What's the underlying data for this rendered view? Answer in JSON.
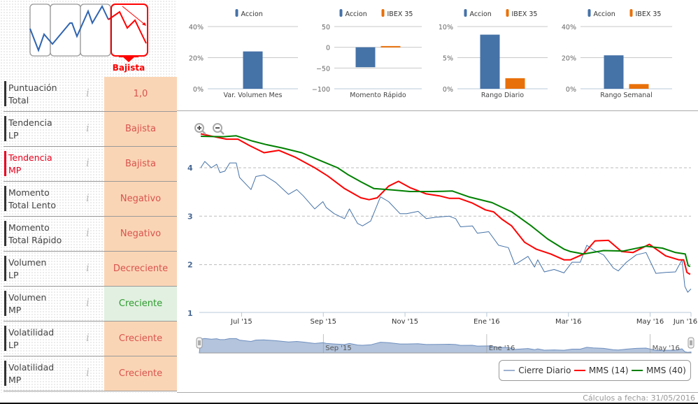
{
  "signal": {
    "label": "Bajista"
  },
  "rows": [
    {
      "line1": "Puntuación",
      "line2": "Total",
      "value": "1,0",
      "status": "neg",
      "highlight": false
    },
    {
      "line1": "Tendencia",
      "line2": "LP",
      "value": "Bajista",
      "status": "neg",
      "highlight": false
    },
    {
      "line1": "Tendencia",
      "line2": "MP",
      "value": "Bajista",
      "status": "neg",
      "highlight": true
    },
    {
      "line1": "Momento",
      "line2": "Total Lento",
      "value": "Negativo",
      "status": "neg",
      "highlight": false
    },
    {
      "line1": "Momento",
      "line2": "Total Rápido",
      "value": "Negativo",
      "status": "neg",
      "highlight": false
    },
    {
      "line1": "Volumen",
      "line2": "LP",
      "value": "Decreciente",
      "status": "neg",
      "highlight": false
    },
    {
      "line1": "Volumen",
      "line2": "MP",
      "value": "Creciente",
      "status": "pos",
      "highlight": false
    },
    {
      "line1": "Volatilidad",
      "line2": "LP",
      "value": "Creciente",
      "status": "neg",
      "highlight": false
    },
    {
      "line1": "Volatilidad",
      "line2": "MP",
      "value": "Creciente",
      "status": "neg",
      "highlight": false
    }
  ],
  "info_icon": "i",
  "colors": {
    "accion": "#4572a7",
    "ibex": "#e8700a",
    "cierre": "#4572a7",
    "mms14": "#ff0000",
    "mms40": "#008000",
    "nav": "#b3c4dc"
  },
  "chart_data": [
    {
      "type": "bar",
      "title": "Var. Volumen Mes",
      "legend": [
        "Accion"
      ],
      "ylim": [
        0,
        40
      ],
      "ticks": [
        "40%",
        "20%",
        "0%"
      ],
      "tickvals": [
        40,
        20,
        0
      ],
      "values": {
        "Accion": 24
      }
    },
    {
      "type": "bar",
      "title": "Momento Rápido",
      "legend": [
        "Accion",
        "IBEX 35"
      ],
      "ylim": [
        -100,
        50
      ],
      "ticks": [
        "50",
        "0",
        "−50",
        "−100"
      ],
      "tickvals": [
        50,
        0,
        -50,
        -100
      ],
      "values": {
        "Accion": -48,
        "IBEX 35": 3
      }
    },
    {
      "type": "bar",
      "title": "Rango Diario",
      "legend": [
        "Accion",
        "IBEX 35"
      ],
      "ylim": [
        0,
        10
      ],
      "ticks": [
        "10%",
        "5%",
        "0%"
      ],
      "tickvals": [
        10,
        5,
        0
      ],
      "values": {
        "Accion": 8.7,
        "IBEX 35": 1.7
      }
    },
    {
      "type": "bar",
      "title": "Rango Semanal",
      "legend": [
        "Accion",
        "IBEX 35"
      ],
      "ylim": [
        0,
        40
      ],
      "ticks": [
        "40%",
        "20%",
        "0%"
      ],
      "tickvals": [
        40,
        20,
        0
      ],
      "values": {
        "Accion": 21.5,
        "IBEX 35": 3
      }
    },
    {
      "type": "line",
      "title": "",
      "x_unit": "months since 1 Jun 2015",
      "xlim": [
        0,
        12
      ],
      "ylim": [
        1,
        4.75
      ],
      "yticks": [
        {
          "v": 4,
          "label": "4"
        },
        {
          "v": 3,
          "label": "3"
        },
        {
          "v": 2,
          "label": "2"
        },
        {
          "v": 1,
          "label": "1"
        }
      ],
      "xticks": [
        {
          "m": 1,
          "label": "Jul '15"
        },
        {
          "m": 3,
          "label": "Sep '15"
        },
        {
          "m": 5,
          "label": "Nov '15"
        },
        {
          "m": 7,
          "label": "Ene '16"
        },
        {
          "m": 9,
          "label": "Mar '16"
        },
        {
          "m": 11,
          "label": "May '16"
        },
        {
          "m": 12,
          "label": "Jun '16"
        }
      ],
      "navigator_labels": [
        {
          "m": 3,
          "label": "Sep '15"
        },
        {
          "m": 7,
          "label": "Ene '16"
        },
        {
          "m": 11,
          "label": "May '16"
        }
      ],
      "series": [
        {
          "name": "Cierre Diario",
          "x": [
            0,
            0.1,
            0.26,
            0.39,
            0.47,
            0.59,
            0.71,
            0.87,
            0.95,
            1.23,
            1.35,
            1.55,
            1.83,
            2.15,
            2.35,
            2.51,
            2.79,
            2.99,
            3.07,
            3.27,
            3.52,
            3.64,
            3.84,
            3.96,
            4.16,
            4.4,
            4.6,
            4.88,
            5.04,
            5.32,
            5.52,
            5.76,
            6.08,
            6.24,
            6.36,
            6.65,
            6.77,
            7.05,
            7.29,
            7.53,
            7.69,
            8.01,
            8.17,
            8.25,
            8.41,
            8.65,
            8.89,
            9.09,
            9.29,
            9.45,
            9.61,
            9.86,
            10.1,
            10.22,
            10.42,
            10.66,
            10.9,
            11.14,
            11.38,
            11.62,
            11.78,
            11.85,
            11.92,
            12
          ],
          "y": [
            4.0,
            4.13,
            4.0,
            4.07,
            3.9,
            3.93,
            4.1,
            4.1,
            3.8,
            3.55,
            3.82,
            3.85,
            3.7,
            3.45,
            3.55,
            3.42,
            3.15,
            3.3,
            3.18,
            3.05,
            2.95,
            3.15,
            2.85,
            2.8,
            2.9,
            3.4,
            3.3,
            3.05,
            3.05,
            3.1,
            2.95,
            2.98,
            3.0,
            2.95,
            2.78,
            2.8,
            2.65,
            2.68,
            2.4,
            2.35,
            2.0,
            2.17,
            1.95,
            2.1,
            1.85,
            1.9,
            1.83,
            2.05,
            2.05,
            2.4,
            2.3,
            2.2,
            1.93,
            1.87,
            2.05,
            2.2,
            2.25,
            1.82,
            1.84,
            1.85,
            2.1,
            1.55,
            1.43,
            1.5
          ]
        },
        {
          "name": "MMS (14)",
          "x": [
            0,
            0.39,
            0.63,
            0.91,
            1.19,
            1.55,
            1.91,
            2.31,
            2.79,
            3.11,
            3.52,
            3.92,
            4.12,
            4.32,
            4.6,
            4.84,
            5.12,
            5.52,
            5.84,
            6.08,
            6.32,
            6.65,
            6.97,
            7.17,
            7.37,
            7.61,
            7.93,
            8.21,
            8.57,
            8.89,
            9.05,
            9.37,
            9.65,
            9.98,
            10.3,
            10.58,
            10.98,
            11.38,
            11.7,
            11.82,
            11.9,
            11.98
          ],
          "y": [
            4.7,
            4.63,
            4.59,
            4.59,
            4.46,
            4.31,
            4.36,
            4.22,
            4.0,
            3.83,
            3.57,
            3.38,
            3.34,
            3.38,
            3.62,
            3.72,
            3.59,
            3.46,
            3.42,
            3.37,
            3.37,
            3.27,
            3.13,
            3.09,
            2.94,
            2.8,
            2.46,
            2.32,
            2.22,
            2.1,
            2.1,
            2.22,
            2.49,
            2.5,
            2.27,
            2.25,
            2.42,
            2.18,
            2.1,
            2.1,
            1.84,
            1.8
          ]
        },
        {
          "name": "MMS (40)",
          "x": [
            0,
            0.55,
            0.87,
            1.27,
            1.59,
            1.99,
            2.47,
            2.95,
            3.35,
            3.6,
            3.92,
            4.24,
            4.72,
            5.12,
            5.68,
            6.16,
            6.56,
            7.13,
            7.61,
            8.09,
            8.49,
            8.89,
            9.05,
            9.37,
            9.86,
            10.34,
            10.9,
            11.3,
            11.62,
            11.86,
            11.93,
            11.98
          ],
          "y": [
            4.65,
            4.64,
            4.66,
            4.55,
            4.48,
            4.41,
            4.31,
            4.14,
            4.0,
            3.86,
            3.71,
            3.57,
            3.54,
            3.51,
            3.51,
            3.52,
            3.4,
            3.28,
            3.09,
            2.8,
            2.53,
            2.32,
            2.27,
            2.22,
            2.29,
            2.28,
            2.38,
            2.34,
            2.25,
            2.22,
            1.98,
            1.96
          ]
        }
      ]
    }
  ],
  "footer": {
    "text": "Cálculos a fecha: 31/05/2016"
  }
}
